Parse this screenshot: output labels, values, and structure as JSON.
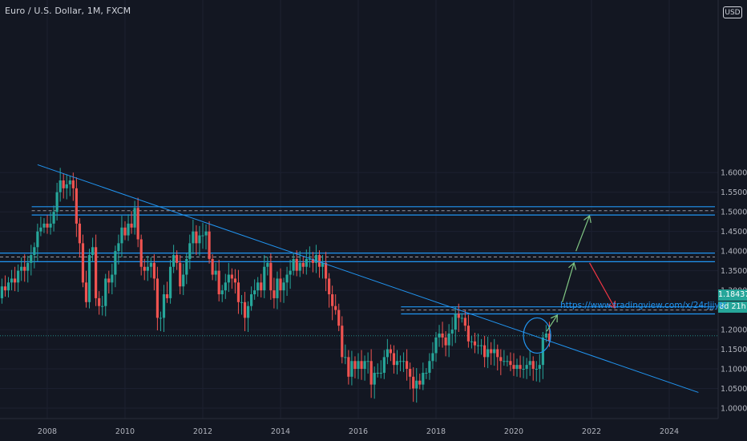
{
  "header": {
    "title": "Euro / U.S. Dollar, 1M, FXCM",
    "currency_label": "USD"
  },
  "price_labels": {
    "last_price": "1.18437",
    "countdown": "8d 21h"
  },
  "annotation": {
    "url": "https://www.tradingview.com/x/24rJjjyt/"
  },
  "colors": {
    "background": "#131722",
    "up_candle": "#26a69a",
    "down_candle": "#ef5350",
    "trendline": "#2196f3",
    "up_arrow": "#81c784",
    "down_arrow": "#f23645",
    "axis_text": "#b2b5be"
  },
  "chart_data": {
    "type": "candlestick",
    "symbol": "Euro / U.S. Dollar",
    "timeframe": "1M",
    "source": "FXCM",
    "y_axis": {
      "ticks": [
        1.0,
        1.05,
        1.1,
        1.15,
        1.2,
        1.25,
        1.3,
        1.35,
        1.4,
        1.45,
        1.5,
        1.55,
        1.6
      ],
      "tick_labels": [
        "1.00000",
        "1.05000",
        "1.10000",
        "1.15000",
        "1.20000",
        "1.25000",
        "1.30000",
        "1.35000",
        "1.40000",
        "1.45000",
        "1.50000",
        "1.55000",
        "1.60000"
      ],
      "range": [
        0.98,
        1.7
      ]
    },
    "x_axis": {
      "ticks": [
        2008,
        2010,
        2012,
        2014,
        2016,
        2018,
        2020,
        2022,
        2024
      ],
      "tick_labels": [
        "2008",
        "2010",
        "2012",
        "2014",
        "2016",
        "2018",
        "2020",
        "2022",
        "2024"
      ],
      "range": [
        2006.75,
        2025.1
      ]
    },
    "candles": {
      "start": 2006.75,
      "step_years": 0.08333,
      "close": [
        1.28,
        1.31,
        1.3,
        1.32,
        1.33,
        1.32,
        1.35,
        1.36,
        1.35,
        1.37,
        1.39,
        1.41,
        1.45,
        1.46,
        1.47,
        1.46,
        1.47,
        1.5,
        1.55,
        1.58,
        1.56,
        1.57,
        1.58,
        1.56,
        1.47,
        1.42,
        1.32,
        1.27,
        1.39,
        1.41,
        1.28,
        1.26,
        1.26,
        1.33,
        1.32,
        1.34,
        1.4,
        1.42,
        1.46,
        1.44,
        1.47,
        1.46,
        1.51,
        1.43,
        1.36,
        1.35,
        1.36,
        1.37,
        1.33,
        1.23,
        1.23,
        1.29,
        1.28,
        1.36,
        1.39,
        1.37,
        1.31,
        1.34,
        1.38,
        1.42,
        1.45,
        1.42,
        1.44,
        1.44,
        1.45,
        1.38,
        1.34,
        1.35,
        1.29,
        1.3,
        1.32,
        1.34,
        1.33,
        1.32,
        1.27,
        1.27,
        1.23,
        1.26,
        1.29,
        1.3,
        1.32,
        1.3,
        1.36,
        1.37,
        1.3,
        1.28,
        1.33,
        1.3,
        1.32,
        1.34,
        1.35,
        1.38,
        1.35,
        1.37,
        1.36,
        1.38,
        1.38,
        1.37,
        1.39,
        1.36,
        1.37,
        1.33,
        1.29,
        1.26,
        1.25,
        1.21,
        1.13,
        1.13,
        1.08,
        1.12,
        1.1,
        1.12,
        1.1,
        1.12,
        1.12,
        1.06,
        1.09,
        1.09,
        1.09,
        1.13,
        1.15,
        1.14,
        1.11,
        1.12,
        1.12,
        1.12,
        1.1,
        1.08,
        1.05,
        1.07,
        1.06,
        1.09,
        1.09,
        1.12,
        1.14,
        1.18,
        1.19,
        1.18,
        1.16,
        1.19,
        1.2,
        1.24,
        1.23,
        1.23,
        1.21,
        1.17,
        1.17,
        1.16,
        1.16,
        1.16,
        1.13,
        1.15,
        1.14,
        1.15,
        1.13,
        1.12,
        1.12,
        1.12,
        1.11,
        1.1,
        1.11,
        1.1,
        1.1,
        1.11,
        1.12,
        1.1,
        1.1,
        1.11,
        1.18,
        1.19,
        1.17
      ],
      "note": "Monthly closes Oct 2006 to Oct 2020, estimated from the chart"
    },
    "horizontal_levels": [
      {
        "lines": [
          1.513,
          1.492
        ],
        "dashed_mid": 1.503,
        "from_year": 2007.6
      },
      {
        "lines": [
          1.395,
          1.373
        ],
        "dashed_mid": 1.385,
        "from_year": 2006.75
      },
      {
        "lines": [
          1.258,
          1.24
        ],
        "dashed_mid": 1.25,
        "from_year": 2017.1
      }
    ],
    "trendline": {
      "from": [
        2007.75,
        1.62
      ],
      "to": [
        2024.75,
        1.04
      ]
    },
    "highlight_circle": {
      "year": 2020.6,
      "price": 1.185
    },
    "projection_arrows": [
      {
        "from": [
          2020.85,
          1.196
        ],
        "to": [
          2021.12,
          1.237
        ],
        "direction": "up"
      },
      {
        "from": [
          2021.25,
          1.27
        ],
        "to": [
          2021.55,
          1.37
        ],
        "direction": "up"
      },
      {
        "from": [
          2021.6,
          1.4
        ],
        "to": [
          2021.95,
          1.49
        ],
        "direction": "up"
      },
      {
        "from": [
          2021.95,
          1.37
        ],
        "to": [
          2022.6,
          1.255
        ],
        "direction": "down"
      }
    ],
    "current_price": 1.18437
  }
}
